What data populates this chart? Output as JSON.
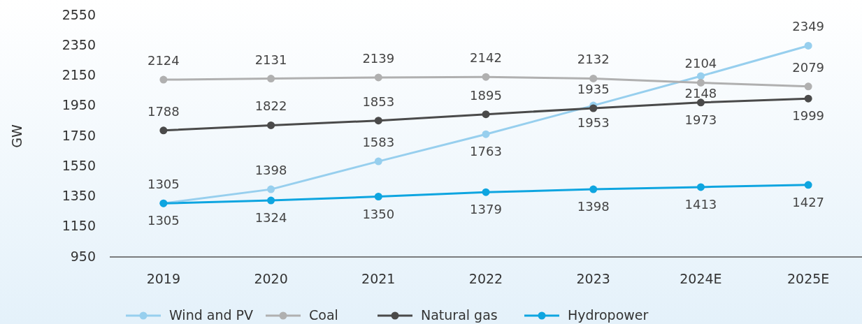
{
  "chart_data": {
    "type": "line",
    "categories": [
      "2019",
      "2020",
      "2021",
      "2022",
      "2023",
      "2024E",
      "2025E"
    ],
    "ylabel": "GW",
    "ylim": [
      950,
      2550
    ],
    "yticks": [
      950,
      1150,
      1350,
      1550,
      1750,
      1950,
      2150,
      2350,
      2550
    ],
    "grid": false,
    "legend": "bottom",
    "marker": "circle",
    "line_style": "solid",
    "data_labels": true,
    "series": [
      {
        "name": "Wind and PV",
        "color": "#97cfee",
        "values": [
          1305,
          1398,
          1583,
          1763,
          1953,
          2148,
          2349
        ]
      },
      {
        "name": "Coal",
        "color": "#b0b0b0",
        "values": [
          2124,
          2131,
          2139,
          2142,
          2132,
          2104,
          2079
        ]
      },
      {
        "name": "Natural gas",
        "color": "#4a4a4a",
        "values": [
          1788,
          1822,
          1853,
          1895,
          1935,
          1973,
          1999
        ]
      },
      {
        "name": "Hydropower",
        "color": "#0ea5e0",
        "values": [
          1305,
          1324,
          1350,
          1379,
          1398,
          1413,
          1427
        ]
      }
    ]
  }
}
